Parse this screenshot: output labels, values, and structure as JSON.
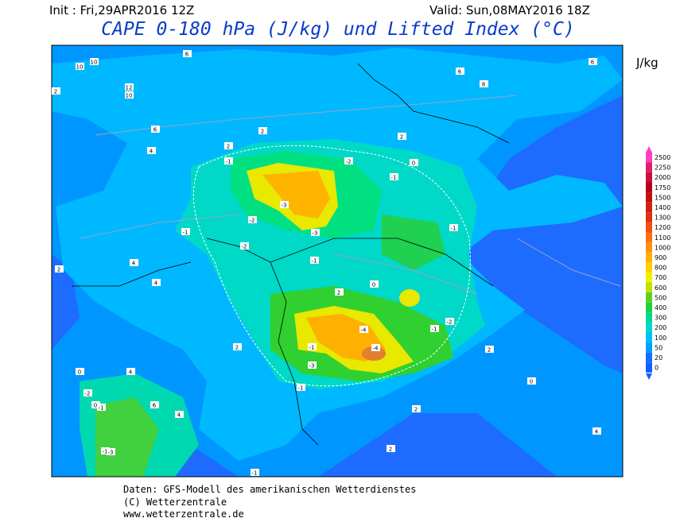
{
  "header": {
    "init": "Init : Fri,29APR2016 12Z",
    "valid": "Valid: Sun,08MAY2016 18Z",
    "title": "CAPE 0-180 hPa (J/kg) und Lifted Index (°C)"
  },
  "colorbar": {
    "unit": "J/kg",
    "labels": [
      2500,
      2250,
      2000,
      1750,
      1500,
      1400,
      1300,
      1200,
      1100,
      1000,
      900,
      800,
      700,
      600,
      500,
      400,
      300,
      200,
      100,
      50,
      20,
      0
    ]
  },
  "map": {
    "contour_labels": [
      10,
      10,
      12,
      10,
      2,
      6,
      4,
      6,
      6,
      2,
      2,
      0,
      2,
      6,
      8,
      -1,
      -2,
      -1,
      -3,
      -3,
      -2,
      -1,
      -2,
      -1,
      -1,
      0,
      2,
      -1,
      -2,
      -4,
      -4,
      -1,
      -3,
      -1,
      2,
      4,
      4,
      2,
      0,
      4,
      4,
      6,
      0,
      -1,
      -1,
      -2,
      -3,
      -1,
      2,
      2,
      0,
      4,
      2
    ]
  },
  "footer": {
    "lines": [
      "Daten: GFS-Modell des amerikanischen Wetterdienstes",
      "(C) Wetterzentrale",
      "www.wetterzentrale.de"
    ]
  }
}
